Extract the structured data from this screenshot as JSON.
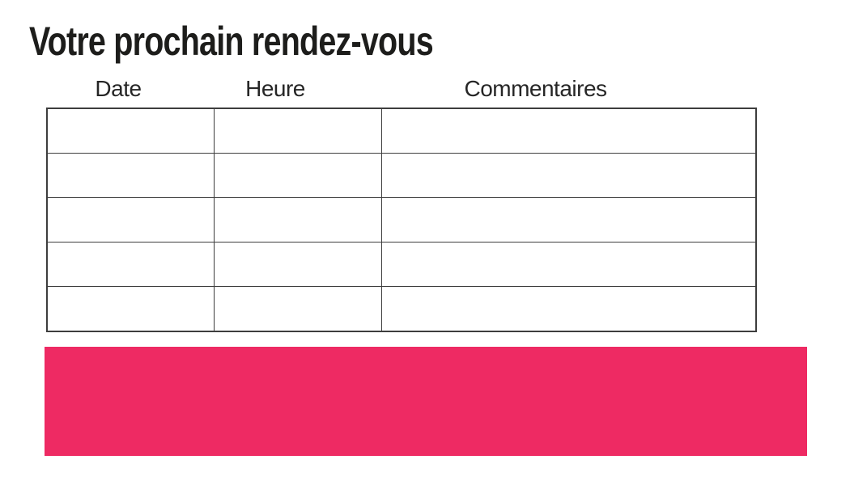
{
  "page": {
    "title": "Votre prochain rendez-vous"
  },
  "table": {
    "headers": [
      "Date",
      "Heure",
      "Commentaires"
    ],
    "rows": [
      [
        "",
        "",
        ""
      ],
      [
        "",
        "",
        ""
      ],
      [
        "",
        "",
        ""
      ],
      [
        "",
        "",
        ""
      ],
      [
        "",
        "",
        ""
      ]
    ]
  },
  "highlight_bar": {
    "text": ""
  },
  "colors": {
    "accent_pink": "#ee2a63",
    "table_border": "#3d3d3d",
    "title_text": "#1d1d1b"
  }
}
